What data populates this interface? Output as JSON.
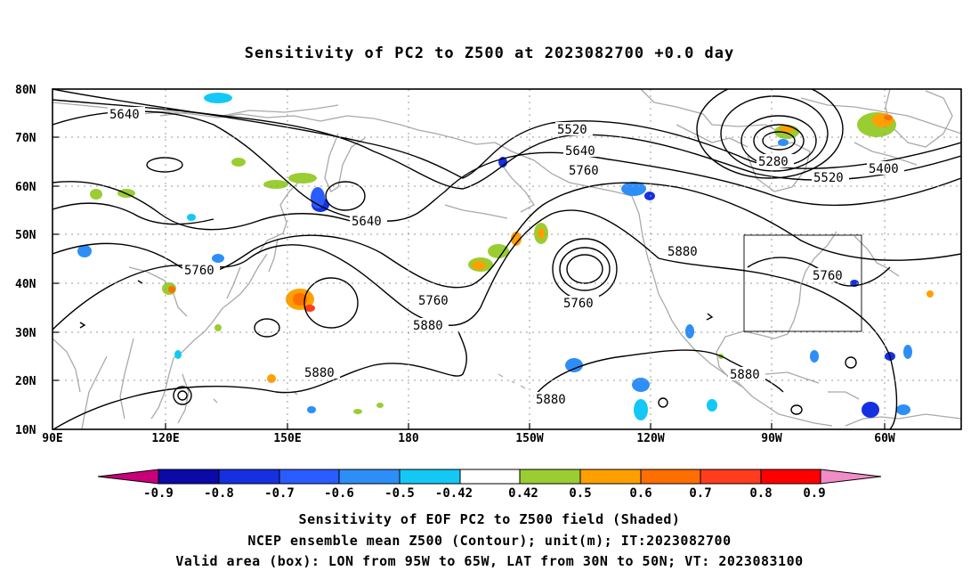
{
  "title": "Sensitivity of PC2 to Z500 at 2023082700 +0.0 day",
  "lat_labels": [
    "80N",
    "70N",
    "60N",
    "50N",
    "40N",
    "30N",
    "20N",
    "10N"
  ],
  "lon_labels": [
    "90E",
    "120E",
    "150E",
    "180",
    "150W",
    "120W",
    "90W",
    "60W"
  ],
  "contour_labels": {
    "c5640a": "5640",
    "c5640b": "5640",
    "c5640c": "5640",
    "c5520a": "5520",
    "c5520b": "5520",
    "c5760a": "5760",
    "c5760b": "5760",
    "c5760c": "5760",
    "c5760d": "5760",
    "c5760e": "5760",
    "c5880a": "5880",
    "c5880b": "5880",
    "c5880c": "5880",
    "c5880d": "5880",
    "c5880e": "5880",
    "c5280": "5280",
    "c5400": "5400"
  },
  "colorbar": {
    "labels": [
      "-0.9",
      "-0.8",
      "-0.7",
      "-0.6",
      "-0.5",
      "-0.42",
      "0.42",
      "0.5",
      "0.6",
      "0.7",
      "0.8",
      "0.9"
    ],
    "colors": [
      "#c8007a",
      "#0a0aa8",
      "#1530e0",
      "#2a5cff",
      "#2e8ef8",
      "#14c8f5",
      "#ffffff",
      "#9acd32",
      "#ffa000",
      "#ff6e00",
      "#ff3c1e",
      "#ff0000",
      "#f08cc8"
    ]
  },
  "valid_box": {
    "lon_min": "95W",
    "lon_max": "65W",
    "lat_min": "30N",
    "lat_max": "50N"
  },
  "caption": {
    "line1": "Sensitivity of EOF PC2 to Z500 field (Shaded)",
    "line2": "NCEP ensemble mean Z500 (Contour); unit(m); IT:2023082700",
    "line3": "Valid area (box): LON from 95W to 65W, LAT from 30N to 50N; VT: 2023083100"
  }
}
